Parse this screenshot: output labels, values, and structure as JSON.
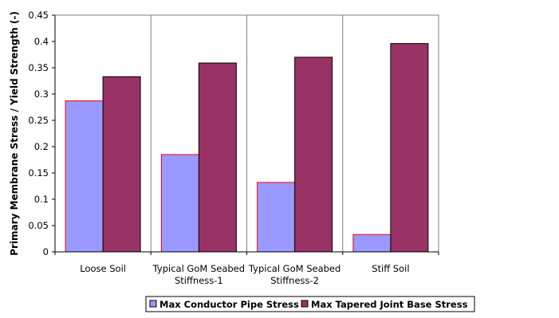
{
  "chart_data": {
    "type": "bar",
    "title": "",
    "xlabel": "",
    "ylabel": "Primary Membrane Stress / Yield Strength (-)",
    "ylim": [
      0,
      0.45
    ],
    "yticks": [
      0,
      0.05,
      0.1,
      0.15,
      0.2,
      0.25,
      0.3,
      0.35,
      0.4,
      0.45
    ],
    "ytick_labels": [
      "0",
      "0.05",
      "0.1",
      "0.15",
      "0.2",
      "0.25",
      "0.3",
      "0.35",
      "0.4",
      "0.45"
    ],
    "categories": [
      [
        "Loose Soil"
      ],
      [
        "Typical GoM Seabed",
        "Stiffness-1"
      ],
      [
        "Typical GoM Seabed",
        "Stiffness-2"
      ],
      [
        "Stiff Soil"
      ]
    ],
    "series": [
      {
        "name": "Max Conductor Pipe Stress",
        "color": "#9999ff",
        "edge": "#ff0000",
        "values": [
          0.287,
          0.185,
          0.132,
          0.033
        ]
      },
      {
        "name": "Max Tapered Joint Base Stress",
        "color": "#993366",
        "edge": "#000000",
        "values": [
          0.333,
          0.359,
          0.37,
          0.396
        ]
      }
    ],
    "grid": {
      "horizontal": false,
      "vertical": true
    },
    "legend_position": "bottom"
  }
}
